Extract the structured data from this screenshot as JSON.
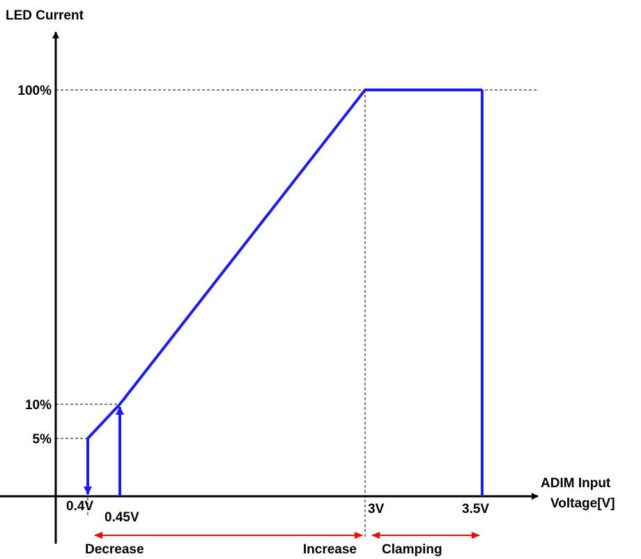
{
  "chart_data": {
    "type": "line",
    "ylabel": "LED Current",
    "xlabel_lines": [
      "ADIM Input",
      "Voltage[V]"
    ],
    "y_ticks": [
      {
        "label": "100%",
        "value": 100
      },
      {
        "label": "10%",
        "value": 10
      },
      {
        "label": "5%",
        "value": 5
      }
    ],
    "x_ticks": [
      {
        "label": "0.4V",
        "value": 0.4
      },
      {
        "label": "0.45V",
        "value": 0.45
      },
      {
        "label": "3V",
        "value": 3.0
      },
      {
        "label": "3.5V",
        "value": 3.5
      }
    ],
    "series": [
      {
        "points": [
          {
            "x": 0.4,
            "y": 5
          },
          {
            "x": 0.45,
            "y": 10
          },
          {
            "x": 3.0,
            "y": 100
          },
          {
            "x": 3.5,
            "y": 100
          }
        ]
      }
    ],
    "arrows": [
      {
        "x": 0.4,
        "from": 5,
        "to": 0,
        "direction": "down"
      },
      {
        "x": 0.45,
        "from": 0,
        "to": 10,
        "direction": "up"
      }
    ],
    "regions": [
      {
        "from": 0.4,
        "to": 3.0,
        "labels": [
          "Decrease",
          "Increase"
        ]
      },
      {
        "from": 3.0,
        "to": 3.5,
        "labels": [
          "Clamping"
        ]
      }
    ],
    "colors": {
      "line": "#1a1aff",
      "region_arrow": "#ff0000",
      "axis": "#000000"
    }
  }
}
